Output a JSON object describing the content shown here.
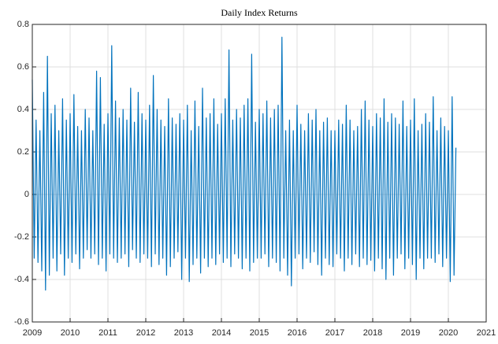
{
  "chart_data": {
    "type": "line",
    "title": "Daily Index Returns",
    "x": [
      2009,
      2009.05,
      2009.1,
      2009.15,
      2009.2,
      2009.25,
      2009.3,
      2009.35,
      2009.4,
      2009.45,
      2009.5,
      2009.55,
      2009.6,
      2009.65,
      2009.7,
      2009.75,
      2009.8,
      2009.85,
      2009.9,
      2009.95,
      2010,
      2010.05,
      2010.1,
      2010.15,
      2010.2,
      2010.25,
      2010.3,
      2010.35,
      2010.4,
      2010.45,
      2010.5,
      2010.55,
      2010.6,
      2010.65,
      2010.7,
      2010.75,
      2010.8,
      2010.85,
      2010.9,
      2010.95,
      2011,
      2011.05,
      2011.1,
      2011.15,
      2011.2,
      2011.25,
      2011.3,
      2011.35,
      2011.4,
      2011.45,
      2011.5,
      2011.55,
      2011.6,
      2011.65,
      2011.7,
      2011.75,
      2011.8,
      2011.85,
      2011.9,
      2011.95,
      2012,
      2012.05,
      2012.1,
      2012.15,
      2012.2,
      2012.25,
      2012.3,
      2012.35,
      2012.4,
      2012.45,
      2012.5,
      2012.55,
      2012.6,
      2012.65,
      2012.7,
      2012.75,
      2012.8,
      2012.85,
      2012.9,
      2012.95,
      2013,
      2013.05,
      2013.1,
      2013.15,
      2013.2,
      2013.25,
      2013.3,
      2013.35,
      2013.4,
      2013.45,
      2013.5,
      2013.55,
      2013.6,
      2013.65,
      2013.7,
      2013.75,
      2013.8,
      2013.85,
      2013.9,
      2013.95,
      2014,
      2014.05,
      2014.1,
      2014.15,
      2014.2,
      2014.25,
      2014.3,
      2014.35,
      2014.4,
      2014.45,
      2014.5,
      2014.55,
      2014.6,
      2014.65,
      2014.7,
      2014.75,
      2014.8,
      2014.85,
      2014.9,
      2014.95,
      2015,
      2015.05,
      2015.1,
      2015.15,
      2015.2,
      2015.25,
      2015.3,
      2015.35,
      2015.4,
      2015.45,
      2015.5,
      2015.55,
      2015.6,
      2015.65,
      2015.7,
      2015.75,
      2015.8,
      2015.85,
      2015.9,
      2015.95,
      2016,
      2016.05,
      2016.1,
      2016.15,
      2016.2,
      2016.25,
      2016.3,
      2016.35,
      2016.4,
      2016.45,
      2016.5,
      2016.55,
      2016.6,
      2016.65,
      2016.7,
      2016.75,
      2016.8,
      2016.85,
      2016.9,
      2016.95,
      2017,
      2017.05,
      2017.1,
      2017.15,
      2017.2,
      2017.25,
      2017.3,
      2017.35,
      2017.4,
      2017.45,
      2017.5,
      2017.55,
      2017.6,
      2017.65,
      2017.7,
      2017.75,
      2017.8,
      2017.85,
      2017.9,
      2017.95,
      2018,
      2018.05,
      2018.1,
      2018.15,
      2018.2,
      2018.25,
      2018.3,
      2018.35,
      2018.4,
      2018.45,
      2018.5,
      2018.55,
      2018.6,
      2018.65,
      2018.7,
      2018.75,
      2018.8,
      2018.85,
      2018.9,
      2018.95,
      2019,
      2019.05,
      2019.1,
      2019.15,
      2019.2,
      2019.25,
      2019.3,
      2019.35,
      2019.4,
      2019.45,
      2019.5,
      2019.55,
      2019.6,
      2019.65,
      2019.7,
      2019.75,
      2019.8,
      2019.85,
      2019.9,
      2019.95,
      2020,
      2020.05,
      2020.1,
      2020.15,
      2020.2
    ],
    "values": [
      0.54,
      -0.3,
      0.35,
      -0.32,
      0.3,
      -0.36,
      0.48,
      -0.45,
      0.65,
      -0.38,
      0.38,
      -0.3,
      0.42,
      -0.36,
      0.3,
      -0.28,
      0.45,
      -0.38,
      0.35,
      -0.3,
      0.38,
      -0.32,
      0.47,
      -0.28,
      0.32,
      -0.35,
      0.3,
      -0.3,
      0.4,
      -0.26,
      0.36,
      -0.3,
      0.3,
      -0.28,
      0.58,
      -0.33,
      0.55,
      -0.3,
      0.33,
      -0.36,
      0.38,
      -0.28,
      0.7,
      -0.3,
      0.44,
      -0.32,
      0.36,
      -0.3,
      0.4,
      -0.28,
      0.35,
      -0.34,
      0.5,
      -0.26,
      0.34,
      -0.3,
      0.48,
      -0.32,
      0.38,
      -0.28,
      0.35,
      -0.3,
      0.42,
      -0.34,
      0.56,
      -0.28,
      0.4,
      -0.33,
      0.35,
      -0.3,
      0.32,
      -0.38,
      0.45,
      -0.34,
      0.36,
      -0.3,
      0.33,
      -0.27,
      0.38,
      -0.4,
      0.35,
      -0.3,
      0.42,
      -0.41,
      0.3,
      -0.33,
      0.44,
      -0.3,
      0.32,
      -0.37,
      0.5,
      -0.3,
      0.36,
      -0.34,
      0.38,
      -0.3,
      0.45,
      -0.33,
      0.33,
      -0.28,
      0.38,
      -0.32,
      0.45,
      -0.3,
      0.68,
      -0.34,
      0.35,
      -0.28,
      0.4,
      -0.3,
      0.36,
      -0.35,
      0.42,
      -0.3,
      0.45,
      -0.36,
      0.66,
      -0.32,
      0.34,
      -0.3,
      0.4,
      -0.3,
      0.38,
      -0.28,
      0.44,
      -0.34,
      0.36,
      -0.3,
      0.4,
      -0.32,
      0.42,
      -0.36,
      0.74,
      -0.3,
      0.3,
      -0.38,
      0.35,
      -0.43,
      0.3,
      -0.3,
      0.42,
      -0.28,
      0.33,
      -0.35,
      0.3,
      -0.3,
      0.38,
      -0.32,
      0.35,
      -0.27,
      0.4,
      -0.33,
      0.3,
      -0.38,
      0.34,
      -0.3,
      0.36,
      -0.33,
      0.3,
      -0.34,
      0.3,
      -0.28,
      0.35,
      -0.3,
      0.33,
      -0.36,
      0.42,
      -0.3,
      0.35,
      -0.33,
      0.3,
      -0.28,
      0.32,
      -0.34,
      0.4,
      -0.3,
      0.44,
      -0.33,
      0.35,
      -0.31,
      0.32,
      -0.36,
      0.38,
      -0.3,
      0.36,
      -0.35,
      0.45,
      -0.4,
      0.34,
      -0.3,
      0.38,
      -0.38,
      0.36,
      -0.3,
      0.33,
      -0.28,
      0.44,
      -0.35,
      0.32,
      -0.3,
      0.35,
      -0.33,
      0.45,
      -0.4,
      0.3,
      -0.3,
      0.33,
      -0.35,
      0.38,
      -0.3,
      0.34,
      -0.3,
      0.46,
      -0.32,
      0.3,
      -0.28,
      0.36,
      -0.34,
      0.32,
      -0.3,
      0.3,
      -0.41,
      0.46,
      -0.38,
      0.22
    ],
    "color": "#0072bd",
    "xlim": [
      2009,
      2021
    ],
    "xticks": [
      2009,
      2010,
      2011,
      2012,
      2013,
      2014,
      2015,
      2016,
      2017,
      2018,
      2019,
      2020,
      2021
    ],
    "ylim": [
      -0.6,
      0.8
    ],
    "yticks": [
      -0.6,
      -0.4,
      -0.2,
      0,
      0.2,
      0.4,
      0.6,
      0.8
    ],
    "grid": true
  }
}
